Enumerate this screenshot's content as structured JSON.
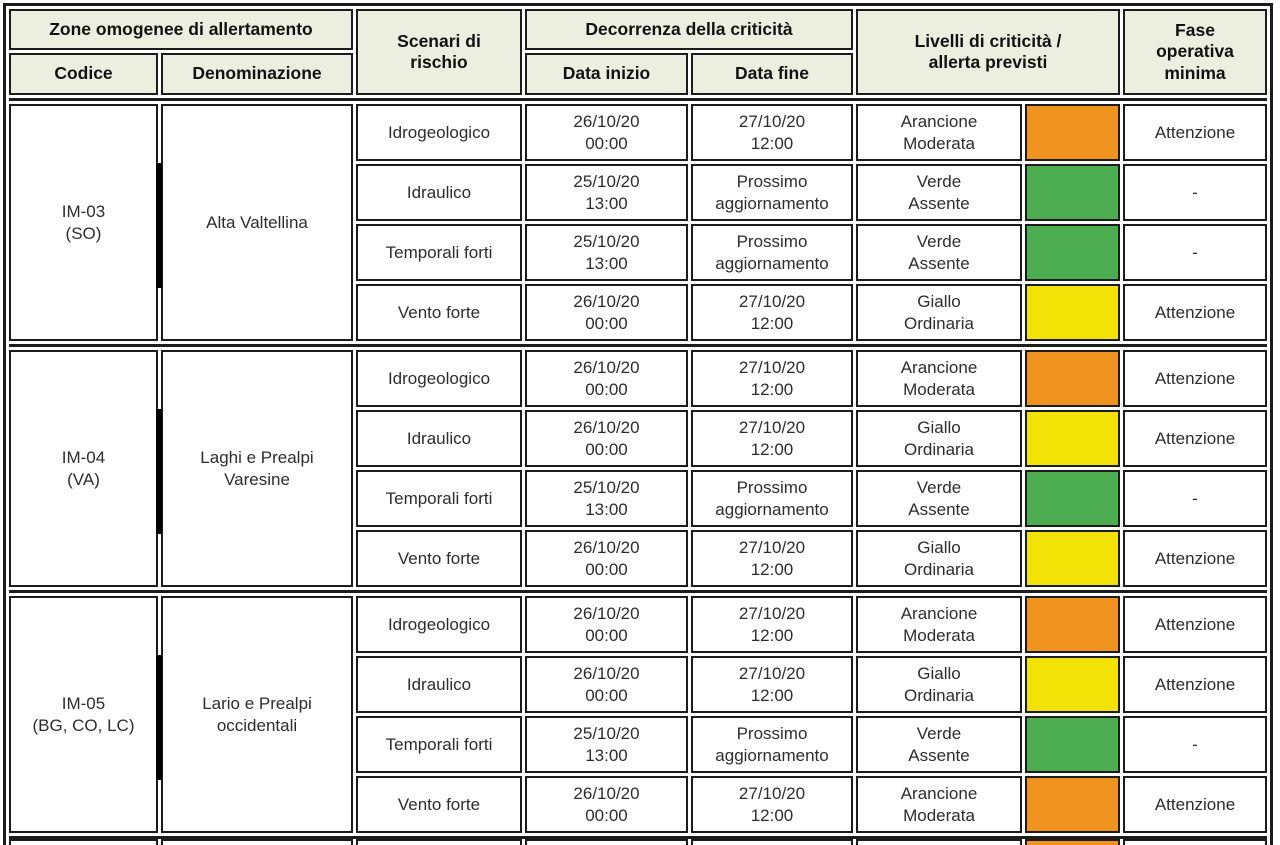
{
  "header": {
    "zone_omogenee": "Zone omogenee di allertamento",
    "codice": "Codice",
    "denominazione": "Denominazione",
    "scenari": "Scenari di rischio",
    "decorrenza": "Decorrenza della criticità",
    "data_inizio": "Data inizio",
    "data_fine": "Data fine",
    "livelli": "Livelli di criticità / allerta previsti",
    "fase": "Fase operativa minima"
  },
  "colors": {
    "border": "#1c1c1c",
    "header_bg": "#ECEFDF",
    "orange": "#F0931E",
    "green": "#4BAD4F",
    "yellow": "#F2E205"
  },
  "groups": [
    {
      "codice": "IM-03",
      "province": "(SO)",
      "denominazione": "Alta Valtellina",
      "rows": [
        {
          "scenario": "Idrogeologico",
          "inizio_l1": "26/10/20",
          "inizio_l2": "00:00",
          "fine_l1": "27/10/20",
          "fine_l2": "12:00",
          "livello_l1": "Arancione",
          "livello_l2": "Moderata",
          "color": "#F0931E",
          "fase": "Attenzione"
        },
        {
          "scenario": "Idraulico",
          "inizio_l1": "25/10/20",
          "inizio_l2": "13:00",
          "fine_l1": "Prossimo",
          "fine_l2": "aggiornamento",
          "livello_l1": "Verde",
          "livello_l2": "Assente",
          "color": "#4BAD4F",
          "fase": "-"
        },
        {
          "scenario": "Temporali forti",
          "inizio_l1": "25/10/20",
          "inizio_l2": "13:00",
          "fine_l1": "Prossimo",
          "fine_l2": "aggiornamento",
          "livello_l1": "Verde",
          "livello_l2": "Assente",
          "color": "#4BAD4F",
          "fase": "-"
        },
        {
          "scenario": "Vento forte",
          "inizio_l1": "26/10/20",
          "inizio_l2": "00:00",
          "fine_l1": "27/10/20",
          "fine_l2": "12:00",
          "livello_l1": "Giallo",
          "livello_l2": "Ordinaria",
          "color": "#F2E205",
          "fase": "Attenzione"
        }
      ]
    },
    {
      "codice": "IM-04",
      "province": "(VA)",
      "denominazione": "Laghi e Prealpi Varesine",
      "rows": [
        {
          "scenario": "Idrogeologico",
          "inizio_l1": "26/10/20",
          "inizio_l2": "00:00",
          "fine_l1": "27/10/20",
          "fine_l2": "12:00",
          "livello_l1": "Arancione",
          "livello_l2": "Moderata",
          "color": "#F0931E",
          "fase": "Attenzione"
        },
        {
          "scenario": "Idraulico",
          "inizio_l1": "26/10/20",
          "inizio_l2": "00:00",
          "fine_l1": "27/10/20",
          "fine_l2": "12:00",
          "livello_l1": "Giallo",
          "livello_l2": "Ordinaria",
          "color": "#F2E205",
          "fase": "Attenzione"
        },
        {
          "scenario": "Temporali forti",
          "inizio_l1": "25/10/20",
          "inizio_l2": "13:00",
          "fine_l1": "Prossimo",
          "fine_l2": "aggiornamento",
          "livello_l1": "Verde",
          "livello_l2": "Assente",
          "color": "#4BAD4F",
          "fase": "-"
        },
        {
          "scenario": "Vento forte",
          "inizio_l1": "26/10/20",
          "inizio_l2": "00:00",
          "fine_l1": "27/10/20",
          "fine_l2": "12:00",
          "livello_l1": "Giallo",
          "livello_l2": "Ordinaria",
          "color": "#F2E205",
          "fase": "Attenzione"
        }
      ]
    },
    {
      "codice": "IM-05",
      "province": "(BG, CO, LC)",
      "denominazione": "Lario e Prealpi occidentali",
      "rows": [
        {
          "scenario": "Idrogeologico",
          "inizio_l1": "26/10/20",
          "inizio_l2": "00:00",
          "fine_l1": "27/10/20",
          "fine_l2": "12:00",
          "livello_l1": "Arancione",
          "livello_l2": "Moderata",
          "color": "#F0931E",
          "fase": "Attenzione"
        },
        {
          "scenario": "Idraulico",
          "inizio_l1": "26/10/20",
          "inizio_l2": "00:00",
          "fine_l1": "27/10/20",
          "fine_l2": "12:00",
          "livello_l1": "Giallo",
          "livello_l2": "Ordinaria",
          "color": "#F2E205",
          "fase": "Attenzione"
        },
        {
          "scenario": "Temporali forti",
          "inizio_l1": "25/10/20",
          "inizio_l2": "13:00",
          "fine_l1": "Prossimo",
          "fine_l2": "aggiornamento",
          "livello_l1": "Verde",
          "livello_l2": "Assente",
          "color": "#4BAD4F",
          "fase": "-"
        },
        {
          "scenario": "Vento forte",
          "inizio_l1": "26/10/20",
          "inizio_l2": "00:00",
          "fine_l1": "27/10/20",
          "fine_l2": "12:00",
          "livello_l1": "Arancione",
          "livello_l2": "Moderata",
          "color": "#F0931E",
          "fase": "Attenzione"
        }
      ]
    }
  ],
  "cutoff": {
    "swatch_color": "#F0931E"
  }
}
